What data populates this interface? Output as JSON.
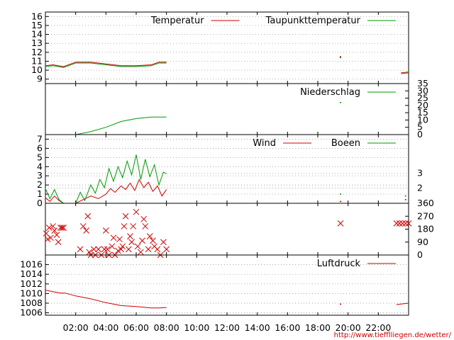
{
  "chart_data": [
    {
      "type": "line",
      "panel": "temperature",
      "title": "",
      "ylim": [
        8.5,
        16.5
      ],
      "y_ticks": [
        "9",
        "10",
        "11",
        "12",
        "13",
        "14",
        "15",
        "16"
      ],
      "grid": "horizontal-dotted",
      "legend": "top-right",
      "series": [
        {
          "name": "Temperatur",
          "color": "#cc0000",
          "x": [
            0,
            0.5,
            1.2,
            2.0,
            3.0,
            4.0,
            5.0,
            6.0,
            7.0,
            7.5,
            8.0,
            19.5,
            23.5,
            24.0
          ],
          "y": [
            10.5,
            10.6,
            10.4,
            10.9,
            10.9,
            10.7,
            10.5,
            10.5,
            10.6,
            10.9,
            10.9,
            11.5,
            9.7,
            9.8
          ]
        },
        {
          "name": "Taupunkttemperatur",
          "color": "#009900",
          "x": [
            0,
            0.5,
            1.2,
            2.0,
            3.0,
            4.0,
            5.0,
            6.0,
            7.0,
            7.5,
            8.0,
            19.5,
            23.5,
            24.0
          ],
          "y": [
            10.4,
            10.5,
            10.3,
            10.8,
            10.8,
            10.6,
            10.4,
            10.4,
            10.5,
            10.8,
            10.8,
            11.4,
            9.6,
            9.7
          ]
        }
      ]
    },
    {
      "type": "line",
      "panel": "precipitation",
      "title": "",
      "ylim": [
        0,
        35
      ],
      "y_ticks": [
        "0",
        "5",
        "10",
        "15",
        "20",
        "25",
        "30",
        "35"
      ],
      "y_axis_side": "right",
      "legend": "top-right",
      "series": [
        {
          "name": "Niederschlag",
          "color": "#009900",
          "x": [
            2.0,
            3.0,
            4.0,
            5.0,
            6.0,
            7.0,
            8.0,
            19.5
          ],
          "y": [
            0,
            2,
            5,
            9,
            11,
            12,
            12,
            22
          ]
        }
      ]
    },
    {
      "type": "line",
      "panel": "wind",
      "title": "",
      "ylim": [
        0,
        7.5
      ],
      "y_ticks": [
        "0",
        "1",
        "2",
        "3",
        "4",
        "5",
        "6",
        "7"
      ],
      "right_labels": [
        {
          "text": "2",
          "at": 1.65
        },
        {
          "text": "3",
          "at": 3.3
        }
      ],
      "grid": "horizontal-dotted",
      "legend": "top-right",
      "series": [
        {
          "name": "Wind",
          "color": "#cc0000",
          "x": [
            0,
            0.3,
            0.6,
            0.9,
            1.2,
            2.0,
            2.5,
            3.0,
            3.5,
            4.0,
            4.3,
            4.6,
            5.0,
            5.3,
            5.6,
            5.9,
            6.2,
            6.5,
            6.8,
            7.1,
            7.4,
            7.7,
            8.0,
            19.5,
            23.8
          ],
          "y": [
            0.6,
            0.2,
            0.8,
            0.3,
            0.0,
            0.0,
            0.4,
            0.8,
            0.5,
            1.0,
            1.6,
            1.2,
            1.9,
            1.5,
            2.2,
            1.4,
            2.6,
            1.7,
            2.3,
            1.3,
            1.9,
            0.8,
            1.5,
            0.2,
            0.4
          ]
        },
        {
          "name": "Boeen",
          "color": "#009900",
          "x": [
            0,
            0.3,
            0.6,
            0.9,
            1.2,
            2.0,
            2.3,
            2.6,
            3.0,
            3.3,
            3.6,
            3.9,
            4.2,
            4.5,
            4.8,
            5.1,
            5.4,
            5.7,
            6.0,
            6.3,
            6.6,
            6.9,
            7.2,
            7.5,
            7.8,
            8.0,
            19.5,
            23.8
          ],
          "y": [
            1.6,
            0.5,
            1.5,
            0.4,
            0.0,
            0.0,
            1.2,
            0.3,
            2.0,
            1.1,
            2.6,
            1.7,
            3.8,
            2.4,
            4.0,
            2.8,
            4.6,
            3.1,
            5.3,
            2.6,
            4.8,
            2.9,
            4.2,
            2.0,
            3.4,
            3.2,
            1.0,
            0.8
          ]
        }
      ]
    },
    {
      "type": "scatter",
      "panel": "wind-direction",
      "title": "",
      "ylim": [
        0,
        360
      ],
      "y_ticks": [
        "0",
        "90",
        "180",
        "270",
        "360"
      ],
      "y_axis_side": "right",
      "marker": "x",
      "series": [
        {
          "color": "#cc0000",
          "x": [
            0.05,
            0.15,
            0.25,
            0.35,
            0.5,
            0.6,
            0.75,
            0.85,
            1.0,
            1.1,
            1.2,
            2.3,
            2.5,
            2.7,
            2.8,
            2.9,
            3.0,
            3.2,
            3.3,
            3.5,
            3.7,
            3.9,
            4.0,
            4.1,
            4.2,
            4.4,
            4.5,
            4.6,
            4.8,
            4.9,
            5.0,
            5.1,
            5.2,
            5.3,
            5.5,
            5.6,
            5.7,
            5.8,
            6.0,
            6.1,
            6.3,
            6.4,
            6.5,
            6.6,
            6.8,
            6.9,
            7.1,
            7.2,
            7.4,
            7.6,
            7.8,
            8.0,
            19.5,
            23.2,
            23.4,
            23.6,
            23.8,
            24.0
          ],
          "y": [
            150,
            110,
            190,
            120,
            200,
            170,
            140,
            90,
            190,
            190,
            190,
            40,
            200,
            170,
            270,
            20,
            0,
            40,
            0,
            40,
            0,
            40,
            170,
            40,
            0,
            60,
            120,
            0,
            30,
            110,
            40,
            60,
            200,
            270,
            40,
            130,
            90,
            200,
            300,
            60,
            20,
            100,
            250,
            200,
            40,
            130,
            100,
            60,
            40,
            0,
            90,
            40,
            220,
            220,
            220,
            220,
            220,
            220
          ]
        }
      ]
    },
    {
      "type": "line",
      "panel": "pressure",
      "title": "",
      "ylim": [
        1005.5,
        1018
      ],
      "y_ticks": [
        "1006",
        "1008",
        "1010",
        "1012",
        "1014",
        "1016"
      ],
      "grid": "horizontal-dotted",
      "legend": "top-right",
      "x_ticks": [
        "02:00",
        "04:00",
        "06:00",
        "08:00",
        "10:00",
        "12:00",
        "14:00",
        "16:00",
        "18:00",
        "20:00",
        "22:00"
      ],
      "series": [
        {
          "name": "Luftdruck",
          "color": "#cc0000",
          "x": [
            0,
            0.5,
            1.0,
            1.3,
            2.0,
            3.0,
            4.0,
            5.0,
            6.0,
            7.0,
            7.5,
            8.0,
            19.5,
            23.2,
            24.0
          ],
          "y": [
            1010.7,
            1010.4,
            1010.1,
            1010.1,
            1009.5,
            1008.9,
            1008.1,
            1007.5,
            1007.3,
            1007.0,
            1007.0,
            1007.1,
            1007.8,
            1007.7,
            1008.0
          ]
        }
      ]
    }
  ],
  "colors": {
    "red": "#cc0000",
    "green": "#009900",
    "frame": "#000000",
    "grid": "#888888"
  },
  "credit": "http://www.tiefflliegen.de/wetter/"
}
